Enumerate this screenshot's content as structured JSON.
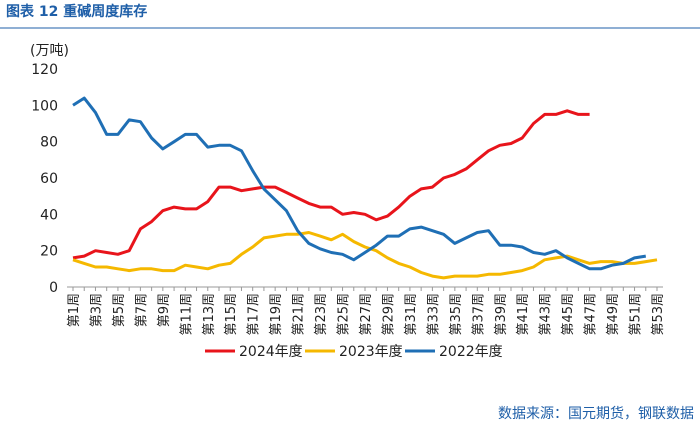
{
  "chart_data": {
    "type": "line",
    "title": "图表 12  重碱周度库存",
    "y_axis_label": "(万吨)",
    "source": "数据来源：国元期货，钢联数据",
    "categories": [
      "第1周",
      null,
      "第3周",
      null,
      "第5周",
      null,
      "第7周",
      null,
      "第9周",
      null,
      "第11周",
      null,
      "第13周",
      null,
      "第15周",
      null,
      "第17周",
      null,
      "第19周",
      null,
      "第21周",
      null,
      "第23周",
      null,
      "第25周",
      null,
      "第27周",
      null,
      "第29周",
      null,
      "第31周",
      null,
      "第33周",
      null,
      "第35周",
      null,
      "第37周",
      null,
      "第39周",
      null,
      "第41周",
      null,
      "第43周",
      null,
      "第45周",
      null,
      "第47周",
      null,
      "第49周",
      null,
      "第51周",
      null,
      "第53周"
    ],
    "series": [
      {
        "name": "2024年度",
        "color": "#e8141b",
        "values": [
          16,
          17,
          20,
          19,
          18,
          20,
          32,
          36,
          42,
          44,
          43,
          43,
          47,
          55,
          55,
          53,
          54,
          55,
          55,
          52,
          49,
          46,
          44,
          44,
          40,
          41,
          40,
          37,
          39,
          44,
          50,
          54,
          55,
          60,
          62,
          65,
          70,
          75,
          78,
          79,
          82,
          90,
          95,
          95,
          97,
          95,
          95,
          null,
          null,
          null,
          null,
          null,
          null
        ]
      },
      {
        "name": "2023年度",
        "color": "#f5b800",
        "values": [
          15,
          13,
          11,
          11,
          10,
          9,
          10,
          10,
          9,
          9,
          12,
          11,
          10,
          12,
          13,
          18,
          22,
          27,
          28,
          29,
          29,
          30,
          28,
          26,
          29,
          25,
          22,
          20,
          16,
          13,
          11,
          8,
          6,
          5,
          6,
          6,
          6,
          7,
          7,
          8,
          9,
          11,
          15,
          16,
          17,
          15,
          13,
          14,
          14,
          13,
          13,
          14,
          15
        ]
      },
      {
        "name": "2022年度",
        "color": "#1f6fb5",
        "values": [
          100,
          104,
          96,
          84,
          84,
          92,
          91,
          82,
          76,
          80,
          84,
          84,
          77,
          78,
          78,
          75,
          64,
          54,
          48,
          42,
          31,
          24,
          21,
          19,
          18,
          15,
          19,
          23,
          28,
          28,
          32,
          33,
          31,
          29,
          24,
          27,
          30,
          31,
          23,
          23,
          22,
          19,
          18,
          20,
          16,
          13,
          10,
          10,
          12,
          13,
          16,
          17,
          null
        ]
      }
    ],
    "ylim": [
      0,
      120
    ],
    "yticks": [
      0,
      20,
      40,
      60,
      80,
      100,
      120
    ],
    "grid": false,
    "legend": "bottom"
  }
}
